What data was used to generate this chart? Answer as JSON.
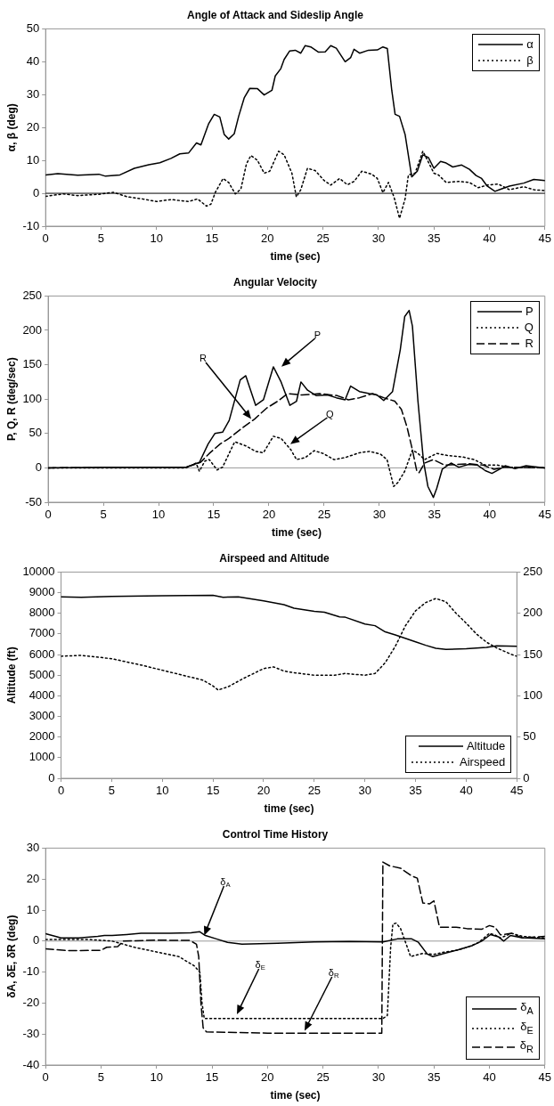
{
  "chart_data": [
    {
      "type": "line",
      "title": "Angle of Attack and Sideslip Angle",
      "xlabel": "time (sec)",
      "ylabel": "α, β (deg)",
      "xlim": [
        0,
        45
      ],
      "xticks": [
        0,
        5,
        10,
        15,
        20,
        25,
        30,
        35,
        40,
        45
      ],
      "ylim": [
        -10,
        50
      ],
      "yticks": [
        -10,
        0,
        10,
        20,
        30,
        40,
        50
      ],
      "grid": false,
      "legend": "top right",
      "marker": "none",
      "ref_lines": [
        {
          "axis": "y",
          "value": 0,
          "color": "#000000"
        }
      ],
      "series": [
        {
          "name": "α",
          "color": "#000000",
          "line_style": "solid",
          "x": [
            0,
            1.1,
            2.9,
            4.8,
            5.4,
            6.7,
            8,
            9.3,
            10.3,
            11.3,
            12.1,
            12.9,
            13.6,
            14,
            14.7,
            15.2,
            15.7,
            16.1,
            16.5,
            17,
            17.4,
            17.9,
            18.4,
            19.1,
            19.7,
            20.4,
            20.7,
            21.2,
            21.5,
            22,
            22.5,
            23,
            23.4,
            23.9,
            24.6,
            25.2,
            25.7,
            26.2,
            27,
            27.5,
            27.8,
            28.3,
            29.1,
            29.9,
            30.4,
            30.8,
            31.2,
            31.5,
            31.9,
            32.4,
            33,
            33.5,
            34,
            34.5,
            35,
            35.6,
            36.1,
            36.7,
            37.5,
            38.2,
            38.8,
            39.3,
            39.8,
            40.5,
            40.9,
            41.8,
            43.1,
            44,
            45
          ],
          "values": [
            5.6,
            6,
            5.5,
            5.8,
            5.2,
            5.6,
            7.6,
            8.7,
            9.3,
            10.6,
            12,
            12.3,
            15.3,
            14.7,
            21.2,
            24,
            23.2,
            17.9,
            16.5,
            18.1,
            23.4,
            29,
            31.9,
            31.8,
            29.9,
            31.3,
            35.7,
            37.9,
            40.7,
            43.3,
            43.5,
            42.6,
            44.9,
            44.5,
            42.9,
            43,
            44.9,
            44.1,
            40,
            41.3,
            43.8,
            42.6,
            43.5,
            43.6,
            44.5,
            44,
            31.3,
            24,
            23.4,
            17.9,
            5,
            6.7,
            11.7,
            10.9,
            7.6,
            9.7,
            9.2,
            8,
            8.6,
            7.3,
            5.4,
            4.5,
            2.2,
            0.6,
            1.1,
            2.2,
            3.1,
            4.2,
            3.9
          ]
        },
        {
          "name": "β",
          "color": "#000000",
          "line_style": "dotted",
          "x": [
            0,
            1.6,
            2.9,
            4.8,
            6.1,
            7.4,
            8.7,
            10,
            11.3,
            12.9,
            13.7,
            14.5,
            14.9,
            15.3,
            16,
            16.5,
            17.1,
            17.6,
            18.1,
            18.5,
            19.1,
            19.7,
            20.2,
            21,
            21.5,
            22.2,
            22.6,
            23,
            23.6,
            24.3,
            25.1,
            25.7,
            26.5,
            27.2,
            27.8,
            28.5,
            29.4,
            29.9,
            30.4,
            30.9,
            31.4,
            31.9,
            32.4,
            32.7,
            33.3,
            34,
            34.5,
            35,
            35.4,
            36.1,
            37.2,
            38.2,
            39,
            39.8,
            40.8,
            41.8,
            43.1,
            44,
            45
          ],
          "values": [
            -0.9,
            -0.2,
            -0.7,
            -0.3,
            0.3,
            -1.1,
            -1.7,
            -2.5,
            -1.9,
            -2.5,
            -1.7,
            -3.9,
            -3.3,
            0.3,
            4.5,
            3.3,
            -0.2,
            1.3,
            8.9,
            11.5,
            10,
            6.1,
            6.7,
            12.8,
            11.7,
            6.1,
            -1.1,
            1.1,
            7.6,
            6.9,
            3.9,
            2.5,
            4.5,
            2.6,
            3.6,
            6.7,
            5.8,
            4.5,
            0.2,
            3.3,
            -1.1,
            -7.6,
            -1.7,
            5.6,
            6.1,
            12.8,
            9.5,
            6.1,
            5.6,
            3.3,
            3.6,
            3.3,
            1.7,
            2.5,
            2.8,
            1.1,
            2,
            1.1,
            0.8
          ]
        }
      ]
    },
    {
      "type": "line",
      "title": "Angular Velocity",
      "xlabel": "time (sec)",
      "ylabel": "P, Q, R (deg/sec)",
      "xlim": [
        0,
        45
      ],
      "xticks": [
        0,
        5,
        10,
        15,
        20,
        25,
        30,
        35,
        40,
        45
      ],
      "ylim": [
        -50,
        250
      ],
      "yticks": [
        -50,
        0,
        50,
        100,
        150,
        200,
        250
      ],
      "grid": false,
      "legend": "top right",
      "marker": "none",
      "ref_lines": [
        {
          "axis": "y",
          "value": 0,
          "color": "#999999"
        }
      ],
      "annotations": [
        "P",
        "R",
        "Q"
      ],
      "series": [
        {
          "name": "P",
          "color": "#000000",
          "line_style": "solid",
          "x": [
            0,
            5,
            10,
            12.5,
            13.7,
            14.5,
            15.1,
            15.8,
            16.4,
            17.4,
            17.9,
            18.8,
            19.5,
            20.4,
            21.1,
            21.9,
            22.5,
            22.9,
            23.5,
            24.3,
            25.3,
            26.1,
            26.9,
            27.4,
            28.2,
            29.1,
            29.8,
            30.4,
            31.2,
            31.9,
            32.3,
            32.7,
            33,
            33.5,
            34,
            34.4,
            34.9,
            35.2,
            35.7,
            36.5,
            37.2,
            38.1,
            38.9,
            39.6,
            40.2,
            40.9,
            41.4,
            42.3,
            43.3,
            45
          ],
          "values": [
            0,
            1,
            1,
            1,
            8,
            35,
            50,
            52,
            69,
            128,
            134,
            91,
            99,
            147,
            125,
            91,
            97,
            125,
            113,
            105,
            106,
            102,
            99,
            119,
            111,
            108,
            106,
            98,
            111,
            172,
            220,
            229,
            206,
            97,
            10,
            -27,
            -43,
            -30,
            -2,
            7,
            1,
            5,
            4,
            -4,
            -8,
            -2,
            3,
            -1,
            3,
            0
          ]
        },
        {
          "name": "Q",
          "color": "#000000",
          "line_style": "dotted",
          "x": [
            0,
            12.5,
            13.4,
            13.7,
            14.2,
            14.6,
            15.3,
            15.8,
            16.9,
            17.9,
            18.8,
            19.5,
            20.4,
            21.1,
            22,
            22.5,
            23.3,
            24.1,
            24.9,
            25.9,
            26.9,
            28.2,
            29.1,
            30.1,
            30.7,
            31.3,
            31.7,
            32.3,
            33,
            33.5,
            34.1,
            35.2,
            36.2,
            37.5,
            38.6,
            39.6,
            40.7,
            41.7,
            45
          ],
          "values": [
            0,
            0,
            7,
            -5,
            10,
            12,
            -3,
            1,
            38,
            32,
            24,
            22,
            46,
            43,
            26,
            12,
            15,
            25,
            21,
            12,
            15,
            22,
            24,
            20,
            12,
            -27,
            -21,
            -5,
            26,
            21,
            12,
            21,
            18,
            16,
            12,
            4,
            4,
            1,
            0
          ]
        },
        {
          "name": "R",
          "color": "#000000",
          "line_style": "dashed",
          "x": [
            0,
            10,
            12.5,
            13.8,
            14.6,
            15.6,
            16.4,
            17.5,
            18.7,
            19.8,
            20.8,
            21.7,
            23,
            24.6,
            26.2,
            27.2,
            28.2,
            29.4,
            30.4,
            31.4,
            32,
            32.5,
            33,
            33.4,
            33.6,
            34.1,
            34.9,
            35.9,
            36.9,
            38.1,
            39.4,
            40.4,
            41.4,
            45
          ],
          "values": [
            0,
            1,
            1,
            8,
            21,
            35,
            43,
            57,
            71,
            87,
            97,
            108,
            106,
            108,
            105,
            99,
            102,
            108,
            102,
            97,
            85,
            60,
            26,
            -5,
            -7,
            7,
            12,
            4,
            5,
            6,
            4,
            -2,
            1,
            0
          ]
        }
      ]
    },
    {
      "type": "line",
      "title": "Airspeed and Altitude",
      "xlabel": "time (sec)",
      "ylabel": "Altitude (ft)",
      "xlim": [
        0,
        45
      ],
      "xticks": [
        0,
        5,
        10,
        15,
        20,
        25,
        30,
        35,
        40,
        45
      ],
      "ylim": [
        0,
        10000
      ],
      "yticks": [
        0,
        1000,
        2000,
        3000,
        4000,
        5000,
        6000,
        7000,
        8000,
        9000,
        10000
      ],
      "y2lim": [
        0,
        250
      ],
      "y2ticks": [
        0,
        50,
        100,
        150,
        200,
        250
      ],
      "grid": false,
      "legend": "bottom right",
      "marker": "none",
      "series": [
        {
          "name": "Altitude",
          "color": "#000000",
          "line_style": "solid",
          "x": [
            0,
            2,
            5,
            10,
            15,
            16,
            17.5,
            20,
            22,
            23,
            25,
            26,
            27.5,
            28,
            30,
            31,
            32,
            33,
            35,
            36,
            37,
            38,
            40,
            42,
            43,
            45
          ],
          "values": [
            8800,
            8780,
            8820,
            8850,
            8870,
            8780,
            8800,
            8600,
            8420,
            8250,
            8100,
            8050,
            7830,
            7820,
            7480,
            7400,
            7100,
            6950,
            6620,
            6450,
            6300,
            6250,
            6280,
            6350,
            6420,
            6400
          ]
        },
        {
          "name": "Airspeed",
          "color": "#000000",
          "line_style": "dotted",
          "axis": "y2",
          "x": [
            0,
            2,
            5,
            8,
            10,
            12,
            14,
            15,
            15.5,
            16.5,
            18,
            20,
            21,
            22,
            23,
            25,
            27,
            28,
            30,
            31,
            32,
            33,
            34,
            35,
            36,
            37,
            38,
            39,
            40,
            41,
            42,
            43,
            44.5,
            45
          ],
          "values": [
            148,
            149,
            145,
            137,
            131,
            125,
            119,
            112,
            107,
            111,
            121,
            133,
            135,
            130,
            128,
            125,
            125,
            127,
            125,
            127,
            140,
            160,
            185,
            203,
            213,
            218,
            214,
            200,
            188,
            175,
            165,
            158,
            150,
            148
          ]
        }
      ]
    },
    {
      "type": "line",
      "title": "Control Time History",
      "xlabel": "time (sec)",
      "ylabel": "δA, δE, δR (deg)",
      "xlim": [
        0,
        45
      ],
      "xticks": [
        0,
        5,
        10,
        15,
        20,
        25,
        30,
        35,
        40,
        45
      ],
      "ylim": [
        -40,
        30
      ],
      "yticks": [
        -40,
        -30,
        -20,
        -10,
        0,
        10,
        20,
        30
      ],
      "grid": false,
      "legend": "bottom right",
      "marker": "none",
      "ref_lines": [
        {
          "axis": "y",
          "value": 0,
          "color": "#999999"
        }
      ],
      "annotations": [
        "δ$_{A}$",
        "δ$_{E}$",
        "δ$_{R}$"
      ],
      "series": [
        {
          "name": "δ$_{A}$",
          "color": "#000000",
          "line_style": "solid",
          "x": [
            0,
            1.4,
            3,
            4.7,
            5.3,
            6,
            7.3,
            8.6,
            11.2,
            13.1,
            13.9,
            14.4,
            15.4,
            16.4,
            17.7,
            20.9,
            24.2,
            27.4,
            30.4,
            31.7,
            33,
            33.6,
            34.4,
            34.9,
            35.9,
            37.2,
            38.5,
            39.3,
            40.1,
            40.8,
            41.3,
            41.9,
            42.9,
            45
          ],
          "values": [
            2.4,
            1,
            1,
            1.5,
            1.8,
            1.8,
            2.1,
            2.5,
            2.5,
            2.7,
            3,
            1.8,
            0.7,
            -0.4,
            -1,
            -0.7,
            -0.3,
            -0.1,
            -0.3,
            0.7,
            0.7,
            -0.4,
            -4.2,
            -5,
            -4,
            -2.8,
            -1.4,
            0,
            2.1,
            1.4,
            0,
            1.8,
            1.1,
            0.7
          ]
        },
        {
          "name": "δ$_{E}$",
          "color": "#000000",
          "line_style": "dotted",
          "x": [
            0,
            4,
            6,
            8,
            10,
            12,
            13.4,
            13.9,
            14.1,
            14.3,
            15,
            30.4,
            30.8,
            31.1,
            31.3,
            31.6,
            32,
            32.5,
            32.9,
            34,
            35,
            36,
            37,
            38,
            39,
            40,
            40.5,
            41,
            42,
            43,
            45
          ],
          "values": [
            0.5,
            0.5,
            0,
            -2,
            -3.5,
            -5,
            -8,
            -10,
            -20,
            -25,
            -25,
            -25,
            -24,
            -2,
            5.5,
            5.8,
            4,
            -1,
            -5,
            -4,
            -4.3,
            -3.5,
            -3,
            -2,
            -0.5,
            2.5,
            2,
            1,
            2.5,
            1.5,
            1
          ]
        },
        {
          "name": "δ$_{R}$",
          "color": "#000000",
          "line_style": "dashed",
          "x": [
            0,
            2,
            5,
            5.5,
            6.5,
            7,
            10,
            13,
            13.6,
            13.8,
            14,
            14.2,
            14.5,
            20,
            30.3,
            30.4,
            31,
            32,
            33,
            33.5,
            34,
            34.6,
            35,
            35.5,
            37,
            38,
            39.3,
            40,
            40.5,
            41,
            42,
            43,
            45
          ],
          "values": [
            -2.5,
            -3.1,
            -3,
            -2,
            -1.8,
            0,
            0.3,
            0.2,
            -1,
            -5,
            -20,
            -28,
            -29.3,
            -29.7,
            -29.7,
            25.5,
            24.3,
            23.5,
            21,
            20.3,
            12.3,
            12,
            13,
            4.5,
            4.5,
            4,
            3.8,
            5,
            4.5,
            2,
            2.5,
            1,
            1.5
          ]
        }
      ]
    }
  ]
}
